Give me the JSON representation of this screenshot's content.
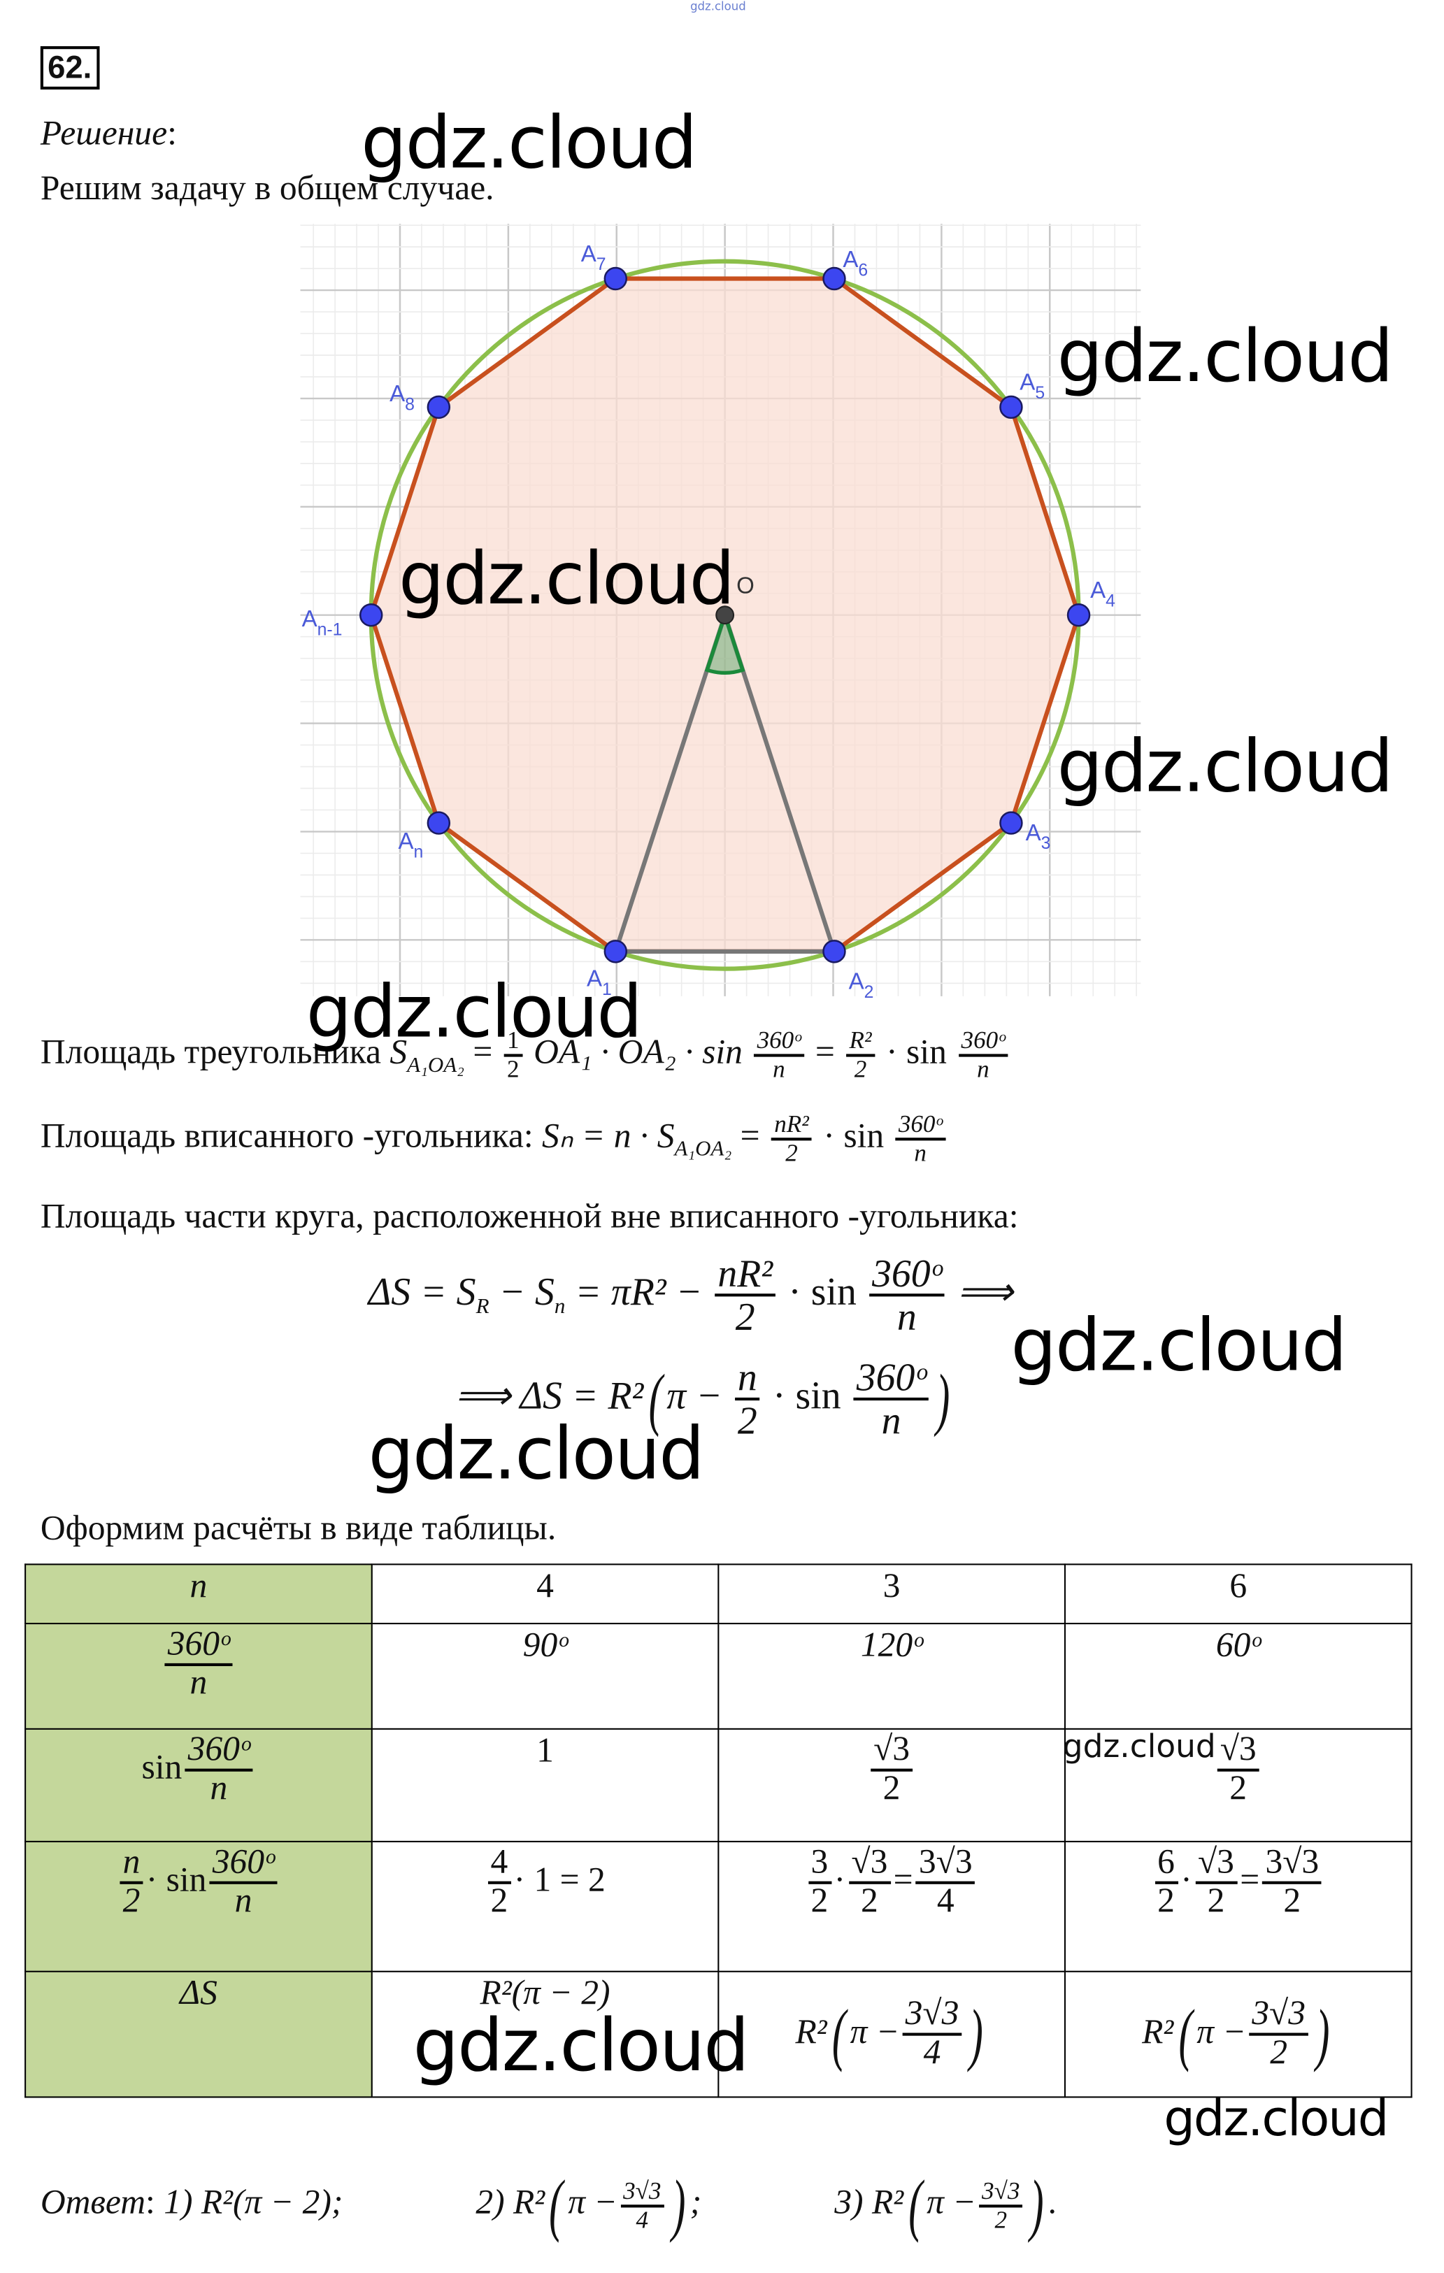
{
  "header": {
    "top_watermark": "gdz.cloud",
    "number": "62.",
    "solution_label": "Решение",
    "colon": ":",
    "intro": "Решим задачу в общем случае."
  },
  "watermark": "gdz.cloud",
  "diagram": {
    "center_label": "O",
    "vertices": [
      "A4",
      "A5",
      "A6",
      "A7",
      "A8",
      "An-1",
      "An",
      "A1",
      "A2",
      "A3"
    ],
    "colors": {
      "circle": "#8cbf4a",
      "polygon": "#c8501e",
      "fill": "#f9ddd3",
      "points": "#3c46f0",
      "radii": "#777777",
      "angle": "#1a8a3a",
      "grid": "#d8d8d8"
    }
  },
  "formulas": {
    "line1": {
      "text": "Площадь треугольника",
      "S": "S",
      "sub": "A₁OA₂",
      "eq": "=",
      "half_num": "1",
      "half_den": "2",
      "mid": "OA₁ · OA₂ · sin",
      "ang_num": "360ᵒ",
      "ang_den": "n",
      "eq2": "=",
      "r_num": "R²",
      "r_den": "2",
      "sin": "· sin"
    },
    "line2": {
      "text": "Площадь вписанного -угольника:",
      "expr": "Sₙ = n · S",
      "sub": "A₁OA₂",
      "eq": "=",
      "num": "nR²",
      "den": "2",
      "sin": "· sin",
      "ang_num": "360ᵒ",
      "ang_den": "n"
    },
    "line3": {
      "text": "Площадь части круга, расположенной вне вписанного -угольника:"
    },
    "line4": {
      "lhs": "ΔS = S",
      "subR": "R",
      "minus": " − S",
      "subn": "n",
      "mid": " = πR² −",
      "num": "nR²",
      "den": "2",
      "sin": "· sin",
      "ang_num": "360ᵒ",
      "ang_den": "n",
      "arrow": "⟹"
    },
    "line5": {
      "lhs": "⟹ ΔS = R²",
      "open": "(",
      "pi": "π −",
      "num": "n",
      "den": "2",
      "sin": "· sin",
      "ang_num": "360ᵒ",
      "ang_den": "n",
      "close": ")"
    }
  },
  "table_intro": "Оформим расчёты в виде таблицы.",
  "table": {
    "row_n": {
      "head": "n",
      "values": [
        "4",
        "3",
        "6"
      ]
    },
    "row_angle": {
      "head_num": "360ᵒ",
      "head_den": "n",
      "values": [
        "90ᵒ",
        "120ᵒ",
        "60ᵒ"
      ]
    },
    "row_sin": {
      "head_sin": "sin",
      "head_num": "360ᵒ",
      "head_den": "n",
      "v1": "1",
      "v2_num": "√3",
      "v2_den": "2",
      "v3_num": "√3",
      "v3_den": "2"
    },
    "row_prod": {
      "head_num": "n",
      "head_den": "2",
      "head_sin": "· sin",
      "head_anum": "360ᵒ",
      "head_aden": "n",
      "c1_num": "4",
      "c1_den": "2",
      "c1_rest": "· 1 = 2",
      "c2_a_num": "3",
      "c2_a_den": "2",
      "c2_b_num": "√3",
      "c2_b_den": "2",
      "c2_r_num": "3√3",
      "c2_r_den": "4",
      "c3_a_num": "6",
      "c3_a_den": "2",
      "c3_b_num": "√3",
      "c3_b_den": "2",
      "c3_r_num": "3√3",
      "c3_r_den": "2",
      "dot": "·",
      "eq": "="
    },
    "row_ds": {
      "head": "ΔS",
      "c1": "R²(π − 2)",
      "c2_pre": "R²",
      "c2_pi": "π −",
      "c2_num": "3√3",
      "c2_den": "4",
      "c3_pre": "R²",
      "c3_pi": "π −",
      "c3_num": "3√3",
      "c3_den": "2",
      "open": "(",
      "close": ")"
    }
  },
  "answer": {
    "label": "Ответ",
    "colon": ":",
    "a1": "1) R²(π − 2);",
    "a2_pre": "2) R²",
    "a2_pi": "π −",
    "a2_num": "3√3",
    "a2_den": "4",
    "a2_end": ";",
    "a3_pre": "3) R²",
    "a3_pi": "π −",
    "a3_num": "3√3",
    "a3_den": "2",
    "a3_end": ".",
    "open": "(",
    "close": ")"
  }
}
